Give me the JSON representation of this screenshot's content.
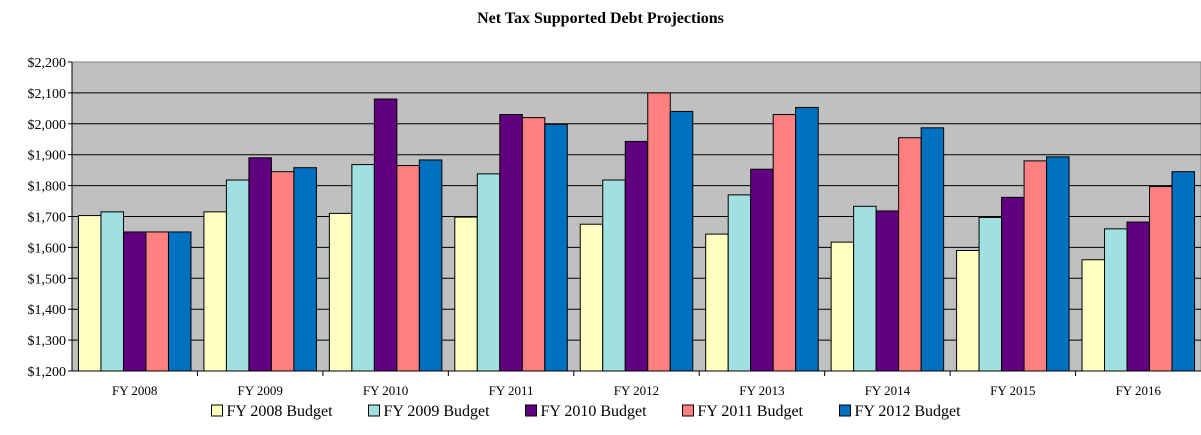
{
  "chart_data": {
    "type": "bar",
    "title": "Net Tax Supported Debt Projections",
    "xlabel": "",
    "ylabel": "",
    "categories": [
      "FY 2008",
      "FY 2009",
      "FY 2010",
      "FY 2011",
      "FY 2012",
      "FY 2013",
      "FY 2014",
      "FY 2015",
      "FY 2016"
    ],
    "ylim": [
      1200,
      2200
    ],
    "ytick_step": 100,
    "ytick_labels": [
      "$1,200",
      "$1,300",
      "$1,400",
      "$1,500",
      "$1,600",
      "$1,700",
      "$1,800",
      "$1,900",
      "$2,000",
      "$2,100",
      "$2,200"
    ],
    "grid": true,
    "plot_background": "#C0C0C0",
    "legend_position": "bottom",
    "series": [
      {
        "name": "FY 2008 Budget",
        "color": "#FFFFC0",
        "values": [
          1703,
          1715,
          1710,
          1698,
          1675,
          1643,
          1617,
          1590,
          1560
        ]
      },
      {
        "name": "FY 2009 Budget",
        "color": "#A0E0E0",
        "values": [
          1715,
          1818,
          1868,
          1838,
          1818,
          1770,
          1733,
          1697,
          1660
        ]
      },
      {
        "name": "FY 2010 Budget",
        "color": "#600080",
        "values": [
          1650,
          1890,
          2080,
          2030,
          1943,
          1853,
          1718,
          1762,
          1682
        ]
      },
      {
        "name": "FY 2011 Budget",
        "color": "#FF8080",
        "values": [
          1650,
          1845,
          1865,
          2020,
          2100,
          2030,
          1955,
          1880,
          1797
        ]
      },
      {
        "name": "FY 2012 Budget",
        "color": "#0070C0",
        "values": [
          1650,
          1858,
          1883,
          1998,
          2040,
          2053,
          1987,
          1893,
          1845
        ]
      }
    ]
  }
}
